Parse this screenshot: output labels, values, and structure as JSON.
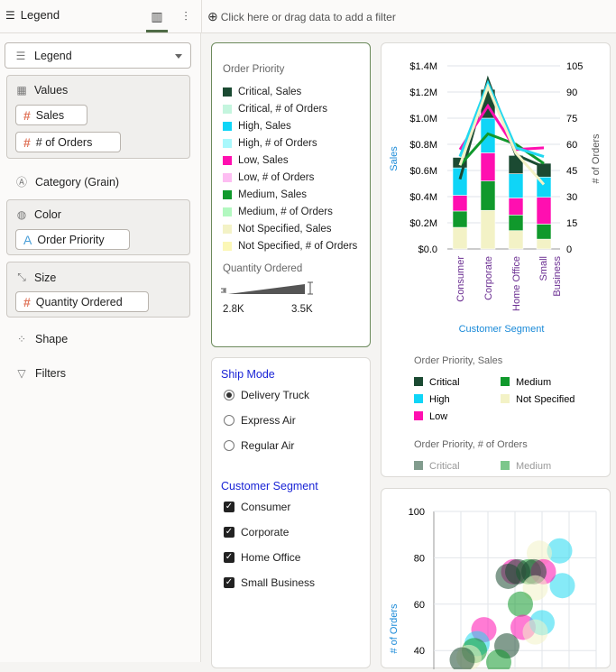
{
  "header": {
    "panel_title": "Legend",
    "filter_placeholder": "Click here or drag data to add a filter"
  },
  "grammar": {
    "selector": "Legend",
    "values": {
      "label": "Values",
      "items": [
        "Sales",
        "# of Orders"
      ]
    },
    "category": "Category (Grain)",
    "color": {
      "label": "Color",
      "item": "Order Priority"
    },
    "size": {
      "label": "Size",
      "item": "Quantity Ordered"
    },
    "shape": "Shape",
    "filters": "Filters"
  },
  "legend": {
    "title": "Order Priority",
    "items": [
      {
        "label": "Critical, Sales",
        "color": "#1b4a32"
      },
      {
        "label": "Critical, # of Orders",
        "color": "#c4f5de"
      },
      {
        "label": "High, Sales",
        "color": "#0fd5f7"
      },
      {
        "label": "High, # of Orders",
        "color": "#a8f8fc"
      },
      {
        "label": "Low, Sales",
        "color": "#ff0fb0"
      },
      {
        "label": "Low, # of Orders",
        "color": "#fdbdf2"
      },
      {
        "label": "Medium, Sales",
        "color": "#10992c"
      },
      {
        "label": "Medium, # of Orders",
        "color": "#b2f8c0"
      },
      {
        "label": "Not Specified, Sales",
        "color": "#f3f2c6"
      },
      {
        "label": "Not Specified, # of Orders",
        "color": "#fbf7b6"
      }
    ],
    "size_title": "Quantity Ordered",
    "size_min": "2.8K",
    "size_max": "3.5K"
  },
  "filters": {
    "ship_mode": {
      "title": "Ship Mode",
      "options": [
        "Delivery Truck",
        "Express Air",
        "Regular Air"
      ],
      "selected": "Delivery Truck"
    },
    "customer_segment": {
      "title": "Customer Segment",
      "options": [
        "Consumer",
        "Corporate",
        "Home Office",
        "Small Business"
      ],
      "checked": [
        true,
        true,
        true,
        true
      ]
    }
  },
  "chart_data": [
    {
      "type": "bar",
      "stacked": true,
      "xlabel": "Customer Segment",
      "ylabel": "Sales",
      "y2label": "# of Orders",
      "categories": [
        "Consumer",
        "Corporate",
        "Home Office",
        "Small Business"
      ],
      "yticks": [
        "$0.0",
        "$0.2M",
        "$0.4M",
        "$0.6M",
        "$0.8M",
        "$1.0M",
        "$1.2M",
        "$1.4M"
      ],
      "ylim": [
        0,
        1.4
      ],
      "y2ticks": [
        "0",
        "15",
        "30",
        "45",
        "60",
        "75",
        "90",
        "105"
      ],
      "y2lim": [
        0,
        105
      ],
      "series": [
        {
          "name": "Not Specified",
          "color": "#f3f2c6",
          "values": [
            0.165,
            0.295,
            0.14,
            0.075
          ]
        },
        {
          "name": "Medium",
          "color": "#10992c",
          "values": [
            0.125,
            0.225,
            0.12,
            0.115
          ]
        },
        {
          "name": "Low",
          "color": "#ff0fb0",
          "values": [
            0.12,
            0.215,
            0.13,
            0.205
          ]
        },
        {
          "name": "High",
          "color": "#0fd5f7",
          "values": [
            0.21,
            0.265,
            0.185,
            0.155
          ]
        },
        {
          "name": "Critical",
          "color": "#1b4a32",
          "values": [
            0.08,
            0.22,
            0.14,
            0.105
          ]
        }
      ],
      "lines": [
        {
          "name": "Critical",
          "color": "#1b4a32",
          "values": [
            40,
            97,
            54,
            47
          ]
        },
        {
          "name": "Medium",
          "color": "#10992c",
          "values": [
            48,
            66,
            60,
            49
          ]
        },
        {
          "name": "Low",
          "color": "#ff0fb0",
          "values": [
            57,
            82,
            57,
            58
          ]
        },
        {
          "name": "High",
          "color": "#22d8f0",
          "values": [
            53,
            95,
            58,
            53
          ]
        },
        {
          "name": "Not Specified",
          "color": "#f3f2c6",
          "values": [
            48,
            93,
            55,
            37
          ]
        }
      ],
      "legend": {
        "title_sales": "Order Priority, Sales",
        "items": [
          "Critical",
          "Medium",
          "High",
          "Not Specified",
          "Low"
        ],
        "title_orders": "Order Priority, # of Orders",
        "orders_items": [
          "Critical",
          "Medium"
        ]
      }
    },
    {
      "type": "scatter",
      "ylabel": "# of Orders",
      "yticks": [
        "40",
        "60",
        "80",
        "100"
      ],
      "ylim": [
        30,
        100
      ],
      "points": [
        {
          "c": "#22d8f0",
          "x": 4.65,
          "y": 83
        },
        {
          "c": "#22d8f0",
          "x": 4.75,
          "y": 68
        },
        {
          "c": "#f3f2c6",
          "x": 3.9,
          "y": 82
        },
        {
          "c": "#ff0fb0",
          "x": 2.95,
          "y": 74
        },
        {
          "c": "#10992c",
          "x": 3.5,
          "y": 74
        },
        {
          "c": "#ff0fb0",
          "x": 4.05,
          "y": 74
        },
        {
          "c": "#1b4a32",
          "x": 2.75,
          "y": 72
        },
        {
          "c": "#1b4a32",
          "x": 3.1,
          "y": 74
        },
        {
          "c": "#1b4a32",
          "x": 3.7,
          "y": 74
        },
        {
          "c": "#f3f2c6",
          "x": 3.75,
          "y": 67
        },
        {
          "c": "#10992c",
          "x": 3.2,
          "y": 60
        },
        {
          "c": "#ff0fb0",
          "x": 1.85,
          "y": 49
        },
        {
          "c": "#ff0fb0",
          "x": 3.3,
          "y": 50
        },
        {
          "c": "#22d8f0",
          "x": 4,
          "y": 52
        },
        {
          "c": "#f3f2c6",
          "x": 3.75,
          "y": 48
        },
        {
          "c": "#1b4a32",
          "x": 2.7,
          "y": 42
        },
        {
          "c": "#22d8f0",
          "x": 1.6,
          "y": 43
        },
        {
          "c": "#10992c",
          "x": 1.5,
          "y": 40
        },
        {
          "c": "#f3f2c6",
          "x": 1.3,
          "y": 37
        },
        {
          "c": "#1b4a32",
          "x": 1.05,
          "y": 36
        },
        {
          "c": "#10992c",
          "x": 2.4,
          "y": 35
        }
      ]
    }
  ]
}
